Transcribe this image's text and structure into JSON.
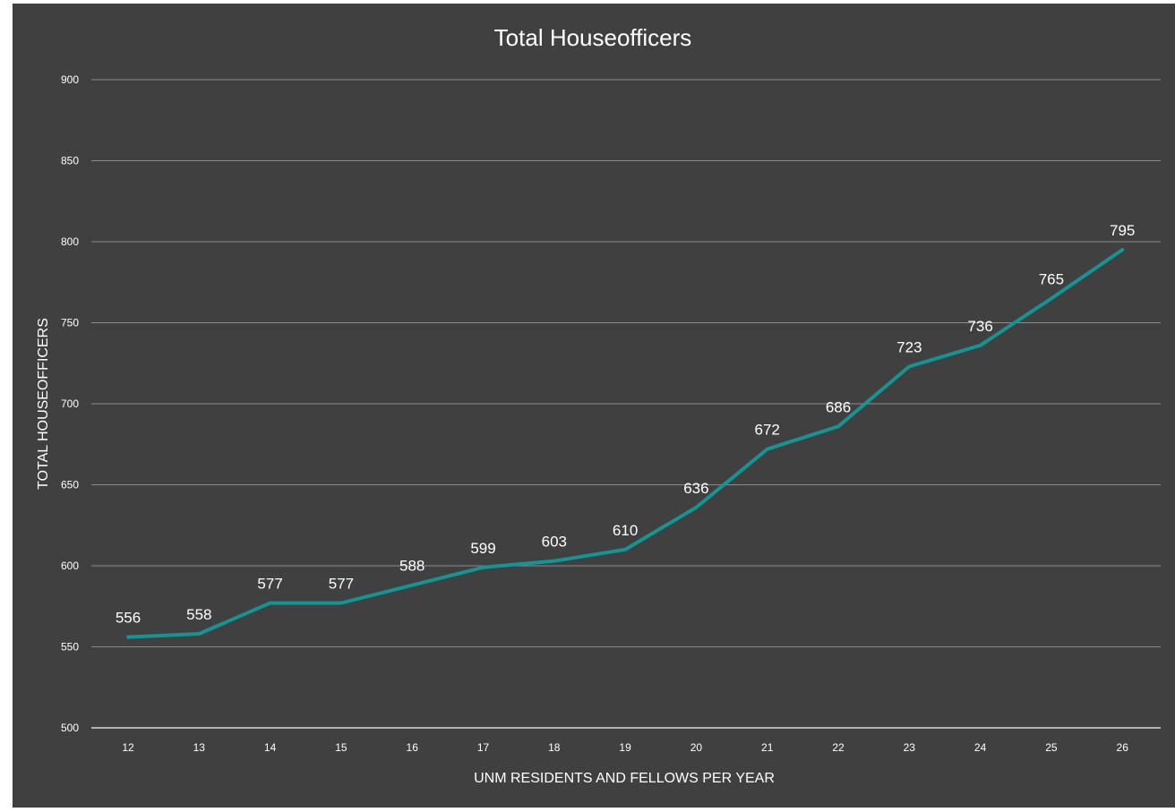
{
  "chart_data": {
    "type": "line",
    "title": "Total Houseofficers",
    "xlabel": "UNM RESIDENTS AND FELLOWS PER YEAR",
    "ylabel": "TOTAL HOUSEOFFICERS",
    "categories": [
      "12",
      "13",
      "14",
      "15",
      "16",
      "17",
      "18",
      "19",
      "20",
      "21",
      "22",
      "23",
      "24",
      "25",
      "26"
    ],
    "series": [
      {
        "values": [
          556,
          558,
          577,
          577,
          588,
          599,
          603,
          610,
          636,
          672,
          686,
          723,
          736,
          765,
          795
        ]
      }
    ],
    "data_labels": [
      "556",
      "558",
      "577",
      "577",
      "588",
      "599",
      "603",
      "610",
      "636",
      "672",
      "686",
      "723",
      "736",
      "765",
      "795"
    ],
    "ylim": [
      500,
      900
    ],
    "yticks": [
      500,
      550,
      600,
      650,
      700,
      750,
      800,
      850,
      900
    ],
    "ytick_labels": [
      "500",
      "550",
      "600",
      "650",
      "700",
      "750",
      "800",
      "850",
      "900"
    ],
    "grid": true,
    "legend": "none",
    "colors": {
      "background": "#404040",
      "line": "#129594",
      "text": "#ffffff",
      "grid": "#8c8c8c",
      "axis": "#d9d9d9"
    }
  }
}
